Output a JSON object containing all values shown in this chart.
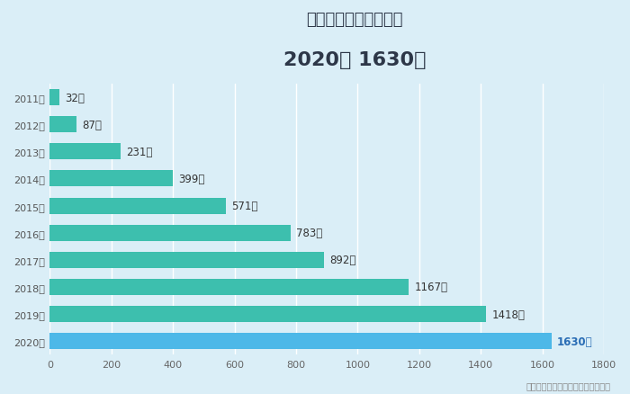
{
  "title_line1": "のべ入学者数（累計）",
  "title_line2": "2020年 1630人",
  "years": [
    "2011年",
    "2012年",
    "2013年",
    "2014年",
    "2015年",
    "2016年",
    "2017年",
    "2018年",
    "2019年",
    "2020年"
  ],
  "values": [
    32,
    87,
    231,
    399,
    571,
    783,
    892,
    1167,
    1418,
    1630
  ],
  "labels": [
    "32人",
    "87人",
    "231人",
    "399人",
    "571人",
    "783人",
    "892人",
    "1167人",
    "1418人",
    "1630人"
  ],
  "bar_colors": [
    "#3dbfae",
    "#3dbfae",
    "#3dbfae",
    "#3dbfae",
    "#3dbfae",
    "#3dbfae",
    "#3dbfae",
    "#3dbfae",
    "#3dbfae",
    "#4db8e8"
  ],
  "background_color": "#daeef7",
  "plot_bg_color": "#daeef7",
  "grid_color": "#ffffff",
  "xlim": [
    0,
    1800
  ],
  "xticks": [
    0,
    200,
    400,
    600,
    800,
    1000,
    1200,
    1400,
    1600,
    1800
  ],
  "footnote": "（株式会社マイファーム自社調べ）",
  "title_fontsize": 13,
  "subtitle_fontsize": 16,
  "label_fontsize": 8.5,
  "axis_fontsize": 8,
  "year_label_fontsize": 8
}
